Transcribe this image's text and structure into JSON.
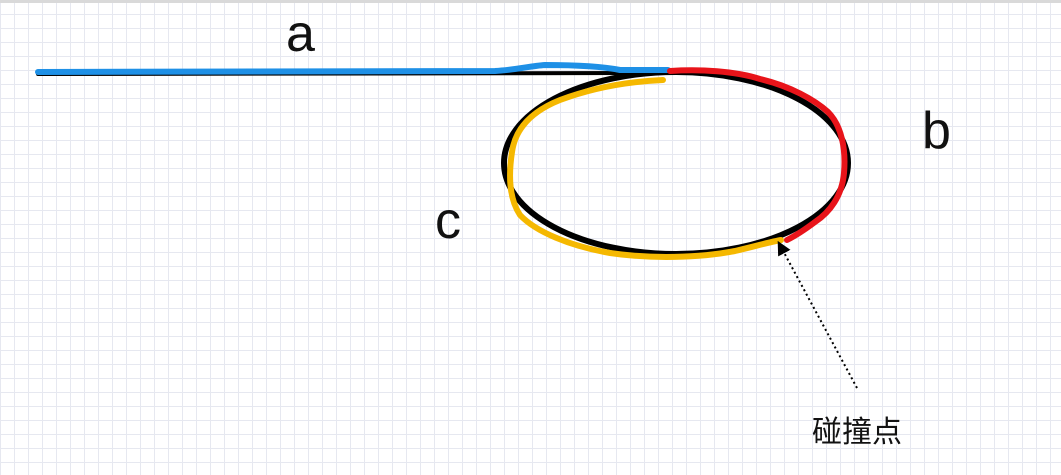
{
  "labels": {
    "a": "a",
    "b": "b",
    "c": "c",
    "collision_point": "碰撞点"
  },
  "colors": {
    "path_a": "#1e90e6",
    "path_b": "#e8141a",
    "path_c": "#f5b800",
    "ellipse": "#000000",
    "pointer": "#000000"
  }
}
